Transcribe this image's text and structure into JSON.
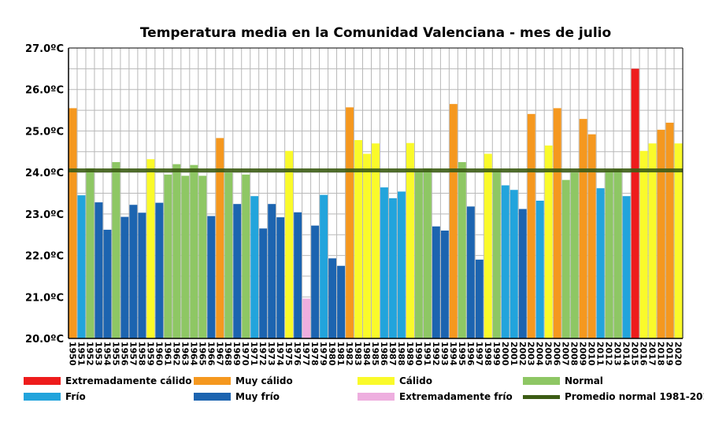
{
  "chart_data": {
    "type": "bar",
    "title": "Temperatura media en la Comunidad Valenciana - mes de julio",
    "xlabel": "",
    "ylabel": "",
    "ylim": [
      20.0,
      27.0
    ],
    "y_ticks": [
      "20.0ºC",
      "21.0ºC",
      "22.0ºC",
      "23.0ºC",
      "24.0ºC",
      "25.0ºC",
      "26.0ºC",
      "27.0ºC"
    ],
    "y_tick_values": [
      20,
      21,
      22,
      23,
      24,
      25,
      26,
      27
    ],
    "grid": true,
    "categories": [
      "1950",
      "1951",
      "1952",
      "1953",
      "1954",
      "1955",
      "1956",
      "1957",
      "1958",
      "1959",
      "1960",
      "1961",
      "1962",
      "1963",
      "1964",
      "1965",
      "1966",
      "1967",
      "1968",
      "1969",
      "1970",
      "1971",
      "1972",
      "1973",
      "1974",
      "1975",
      "1976",
      "1977",
      "1978",
      "1979",
      "1980",
      "1981",
      "1982",
      "1983",
      "1984",
      "1985",
      "1986",
      "1987",
      "1988",
      "1989",
      "1990",
      "1991",
      "1992",
      "1993",
      "1994",
      "1995",
      "1996",
      "1997",
      "1998",
      "1999",
      "2000",
      "2001",
      "2002",
      "2003",
      "2004",
      "2005",
      "2006",
      "2007",
      "2008",
      "2009",
      "2010",
      "2011",
      "2012",
      "2013",
      "2014",
      "2015",
      "2016",
      "2017",
      "2018",
      "2019",
      "2020"
    ],
    "values": [
      25.55,
      23.45,
      24.1,
      23.28,
      22.62,
      24.25,
      22.93,
      23.22,
      23.03,
      24.32,
      23.27,
      23.95,
      24.2,
      23.92,
      24.18,
      23.92,
      22.95,
      24.83,
      24.0,
      23.24,
      23.95,
      23.43,
      22.65,
      23.24,
      22.92,
      24.52,
      23.04,
      20.96,
      22.72,
      23.46,
      21.93,
      21.75,
      25.57,
      24.78,
      24.45,
      24.7,
      23.64,
      23.38,
      23.54,
      24.71,
      24.04,
      24.1,
      22.7,
      22.6,
      25.65,
      24.25,
      23.18,
      21.9,
      24.45,
      24.05,
      23.69,
      23.58,
      23.12,
      25.41,
      23.32,
      24.65,
      25.55,
      23.82,
      24.0,
      25.29,
      24.92,
      23.62,
      24.05,
      24.08,
      23.43,
      26.5,
      24.52,
      24.7,
      25.03,
      25.2,
      24.7
    ],
    "classes": [
      "muy_calido",
      "frio",
      "normal",
      "muy_frio",
      "muy_frio",
      "normal",
      "muy_frio",
      "muy_frio",
      "muy_frio",
      "calido",
      "muy_frio",
      "normal",
      "normal",
      "normal",
      "normal",
      "normal",
      "muy_frio",
      "muy_calido",
      "normal",
      "muy_frio",
      "normal",
      "frio",
      "muy_frio",
      "muy_frio",
      "muy_frio",
      "calido",
      "muy_frio",
      "extremadamente_frio",
      "muy_frio",
      "frio",
      "muy_frio",
      "muy_frio",
      "muy_calido",
      "calido",
      "calido",
      "calido",
      "frio",
      "frio",
      "frio",
      "calido",
      "normal",
      "normal",
      "muy_frio",
      "muy_frio",
      "muy_calido",
      "normal",
      "muy_frio",
      "muy_frio",
      "calido",
      "normal",
      "frio",
      "frio",
      "muy_frio",
      "muy_calido",
      "frio",
      "calido",
      "muy_calido",
      "normal",
      "normal",
      "muy_calido",
      "muy_calido",
      "frio",
      "normal",
      "normal",
      "frio",
      "extremadamente_calido",
      "calido",
      "calido",
      "muy_calido",
      "muy_calido",
      "calido"
    ],
    "colors": {
      "extremadamente_calido": "#ee1c1c",
      "muy_calido": "#f5981f",
      "calido": "#fafa2a",
      "normal": "#8ec764",
      "frio": "#22a4dc",
      "muy_frio": "#1c64b0",
      "extremadamente_frio": "#eeaedf",
      "promedio": "#3c5c14"
    },
    "reference_line": {
      "name": "Promedio normal 1981-2010",
      "value": 24.05
    },
    "legend": [
      {
        "key": "extremadamente_calido",
        "label": "Extremadamente cálido"
      },
      {
        "key": "muy_calido",
        "label": "Muy cálido"
      },
      {
        "key": "calido",
        "label": "Cálido"
      },
      {
        "key": "normal",
        "label": "Normal"
      },
      {
        "key": "frio",
        "label": "Frío"
      },
      {
        "key": "muy_frio",
        "label": "Muy frío"
      },
      {
        "key": "extremadamente_frio",
        "label": "Extremadamente frío"
      },
      {
        "key": "promedio",
        "label": "Promedio normal 1981-2010",
        "line": true
      }
    ],
    "legend_placement": "bottom"
  }
}
